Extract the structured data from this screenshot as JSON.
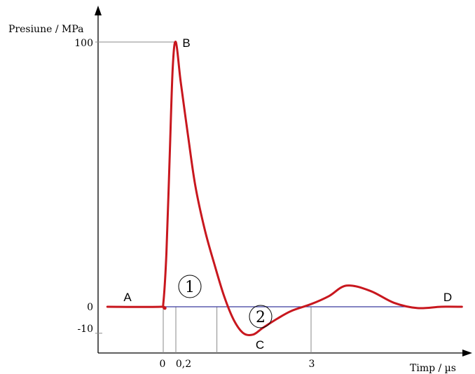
{
  "chart_data": {
    "type": "line",
    "ylabel": "Presiune / MPa",
    "xlabel": "Timp / µs",
    "y_ticks": [
      "100",
      "0",
      "-10"
    ],
    "x_ticks": [
      "0",
      "0,2",
      "3"
    ],
    "points": [
      {
        "label": "A",
        "x": -1.1,
        "y": 0
      },
      {
        "label": "B",
        "x": 0.2,
        "y": 100
      },
      {
        "label": "C",
        "x": 1.6,
        "y": -10
      },
      {
        "label": "D",
        "x": 5.2,
        "y": 0
      }
    ],
    "regions": [
      {
        "label": "1"
      },
      {
        "label": "2"
      }
    ],
    "series": [
      {
        "color": "#c8171e",
        "x": [
          -1.2,
          -0.05,
          0.0,
          0.05,
          0.1,
          0.15,
          0.2,
          0.3,
          0.45,
          0.6,
          0.8,
          1.0,
          1.2,
          1.4,
          1.6,
          1.8,
          2.0,
          2.3,
          2.6,
          3.0,
          3.3,
          3.6,
          4.0,
          4.4,
          4.8,
          5.2,
          5.55
        ],
        "y": [
          0,
          0,
          1,
          20,
          55,
          90,
          100,
          85,
          65,
          46,
          29,
          16,
          4,
          -5,
          -10,
          -10.5,
          -8,
          -4.5,
          -1.5,
          1,
          4,
          8,
          6,
          1.5,
          -0.5,
          0,
          0
        ]
      }
    ],
    "baseline_color": "#3a3a9e",
    "xlim": [
      -1.4,
      5.7
    ],
    "ylim": [
      -20,
      118
    ]
  }
}
